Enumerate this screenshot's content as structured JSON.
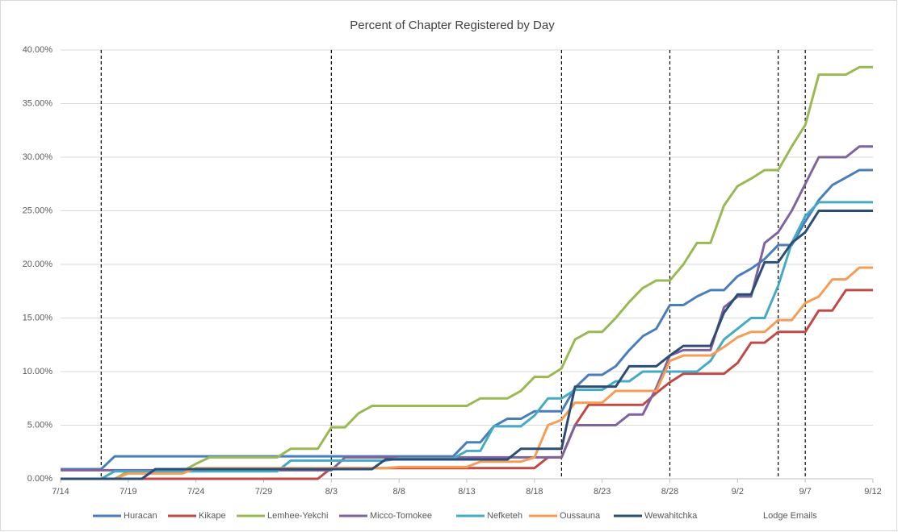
{
  "chart_data": {
    "type": "line",
    "title": "Percent of Chapter Registered by Day",
    "x": [
      0,
      1,
      2,
      3,
      4,
      5,
      6,
      7,
      8,
      9,
      10,
      11,
      12,
      13,
      14,
      15,
      16,
      17,
      18,
      19,
      20,
      21,
      22,
      23,
      24,
      25,
      26,
      27,
      28,
      29,
      30,
      31,
      32,
      33,
      34,
      35,
      36,
      37,
      38,
      39,
      40,
      41,
      42,
      43,
      44,
      45,
      46,
      47,
      48,
      49,
      50,
      51,
      52,
      53,
      54,
      55,
      56,
      57,
      58,
      59,
      60
    ],
    "xlim": [
      0,
      60
    ],
    "xticks": [
      {
        "value": 0,
        "label": "7/14"
      },
      {
        "value": 5,
        "label": "7/19"
      },
      {
        "value": 10,
        "label": "7/24"
      },
      {
        "value": 15,
        "label": "7/29"
      },
      {
        "value": 20,
        "label": "8/3"
      },
      {
        "value": 25,
        "label": "8/8"
      },
      {
        "value": 30,
        "label": "8/13"
      },
      {
        "value": 35,
        "label": "8/18"
      },
      {
        "value": 40,
        "label": "8/23"
      },
      {
        "value": 45,
        "label": "8/28"
      },
      {
        "value": 50,
        "label": "9/2"
      },
      {
        "value": 55,
        "label": "9/7"
      },
      {
        "value": 60,
        "label": "9/12"
      }
    ],
    "ylim": [
      0,
      40
    ],
    "yticks": [
      {
        "value": 0,
        "label": "0.00%"
      },
      {
        "value": 5,
        "label": "5.00%"
      },
      {
        "value": 10,
        "label": "10.00%"
      },
      {
        "value": 15,
        "label": "15.00%"
      },
      {
        "value": 20,
        "label": "20.00%"
      },
      {
        "value": 25,
        "label": "25.00%"
      },
      {
        "value": 30,
        "label": "30.00%"
      },
      {
        "value": 35,
        "label": "35.00%"
      },
      {
        "value": 40,
        "label": "40.00%"
      }
    ],
    "grid": true,
    "legend": "bottom",
    "series": [
      {
        "name": "Huracan",
        "color": "#4a7ebb",
        "values": [
          0.9,
          0.9,
          0.9,
          0.9,
          2.1,
          2.1,
          2.1,
          2.1,
          2.1,
          2.1,
          2.1,
          2.1,
          2.1,
          2.1,
          2.1,
          2.1,
          2.1,
          2.1,
          2.1,
          2.1,
          2.1,
          2.1,
          2.1,
          2.1,
          2.1,
          2.1,
          2.1,
          2.1,
          2.1,
          2.1,
          3.4,
          3.4,
          4.9,
          5.6,
          5.6,
          6.3,
          6.3,
          6.3,
          8.5,
          9.7,
          9.7,
          10.5,
          12,
          13.3,
          14,
          16.2,
          16.2,
          17,
          17.6,
          17.6,
          18.9,
          19.6,
          20.5,
          21.8,
          21.8,
          24,
          26,
          27.4,
          28.1,
          28.8,
          28.8
        ]
      },
      {
        "name": "Kikape",
        "color": "#be4b48",
        "values": [
          0,
          0,
          0,
          0,
          0,
          0,
          0,
          0,
          0,
          0,
          0,
          0,
          0,
          0,
          0,
          0,
          0,
          0,
          0,
          0,
          1,
          1,
          1,
          1,
          1,
          1,
          1,
          1,
          1,
          1,
          1,
          1,
          1,
          1,
          1,
          1,
          2,
          2,
          5,
          6.9,
          6.9,
          6.9,
          6.9,
          6.9,
          8,
          9,
          9.8,
          9.8,
          9.8,
          9.8,
          10.8,
          12.7,
          12.7,
          13.7,
          13.7,
          13.7,
          15.7,
          15.7,
          17.6,
          17.6,
          17.6
        ]
      },
      {
        "name": "Lemhee-Yekchi",
        "color": "#98b954",
        "values": [
          0,
          0,
          0,
          0,
          0,
          0.7,
          0.7,
          0.7,
          0.7,
          0.7,
          1.4,
          2,
          2,
          2,
          2,
          2,
          2,
          2.8,
          2.8,
          2.8,
          4.8,
          4.8,
          6.1,
          6.8,
          6.8,
          6.8,
          6.8,
          6.8,
          6.8,
          6.8,
          6.8,
          7.5,
          7.5,
          7.5,
          8.2,
          9.5,
          9.5,
          10.3,
          13,
          13.7,
          13.7,
          15,
          16.5,
          17.8,
          18.5,
          18.5,
          20,
          22,
          22,
          25.5,
          27.3,
          28,
          28.8,
          28.8,
          31,
          33,
          37.7,
          37.7,
          37.7,
          38.4,
          38.4
        ]
      },
      {
        "name": "Micco-Tomokee",
        "color": "#7e649e",
        "values": [
          0.8,
          0.8,
          0.8,
          0.8,
          0.8,
          0.8,
          0.8,
          0.8,
          0.8,
          0.8,
          0.8,
          0.8,
          0.8,
          0.8,
          0.8,
          0.8,
          0.8,
          0.8,
          0.8,
          0.8,
          0.8,
          2,
          2,
          2,
          2,
          2,
          2,
          2,
          2,
          2,
          2,
          2,
          2,
          2,
          2,
          2,
          2,
          2,
          5,
          5,
          5,
          5,
          6,
          6,
          8.5,
          11.5,
          12,
          12,
          12,
          16,
          17,
          17,
          22,
          23,
          25,
          27.5,
          30,
          30,
          30,
          31,
          31
        ]
      },
      {
        "name": "Nefketeh",
        "color": "#46aac5",
        "values": [
          0,
          0,
          0,
          0,
          0.7,
          0.7,
          0.7,
          0.7,
          0.7,
          0.7,
          0.7,
          0.7,
          0.7,
          0.7,
          0.7,
          0.7,
          0.7,
          1.7,
          1.7,
          1.7,
          1.7,
          1.7,
          1.7,
          1.7,
          1.7,
          1.9,
          1.9,
          1.9,
          1.9,
          1.9,
          2.6,
          2.6,
          4.9,
          4.9,
          4.9,
          5.9,
          7.5,
          7.5,
          8.3,
          8.3,
          8.3,
          9.1,
          9.1,
          10,
          10,
          10,
          10,
          10,
          11,
          13,
          14,
          15,
          15,
          18,
          22,
          24.5,
          25.8,
          25.8,
          25.8,
          25.8,
          25.8
        ]
      },
      {
        "name": "Oussauna",
        "color": "#f59d56",
        "values": [
          0,
          0,
          0,
          0,
          0,
          0.5,
          0.5,
          0.5,
          0.5,
          0.5,
          1,
          1,
          1,
          1,
          1,
          1,
          1,
          1,
          1,
          1,
          1,
          1,
          1,
          1,
          1,
          1.1,
          1.1,
          1.1,
          1.1,
          1.1,
          1.1,
          1.6,
          1.6,
          1.6,
          1.6,
          2,
          5,
          5.5,
          7.1,
          7.1,
          7.1,
          8.2,
          8.2,
          8.2,
          8.2,
          11,
          11.5,
          11.5,
          11.5,
          12.3,
          13.2,
          13.7,
          13.7,
          14.8,
          14.8,
          16.4,
          17,
          18.6,
          18.6,
          19.7,
          19.7
        ]
      },
      {
        "name": "Wewahitchka",
        "color": "#2c4d75",
        "values": [
          0,
          0,
          0,
          0,
          0,
          0,
          0,
          0.9,
          0.9,
          0.9,
          0.9,
          0.9,
          0.9,
          0.9,
          0.9,
          0.9,
          0.9,
          0.9,
          0.9,
          0.9,
          0.9,
          0.9,
          0.9,
          0.9,
          1.8,
          1.8,
          1.8,
          1.8,
          1.8,
          1.8,
          1.8,
          1.8,
          1.8,
          1.8,
          2.8,
          2.8,
          2.8,
          2.8,
          8.6,
          8.6,
          8.6,
          8.6,
          10.5,
          10.5,
          10.5,
          11.5,
          12.4,
          12.4,
          12.4,
          15.5,
          17.2,
          17.2,
          20.2,
          20.2,
          22,
          23,
          25,
          25,
          25,
          25,
          25
        ]
      }
    ],
    "lodge_emails": {
      "name": "Lodge Emails",
      "color": "#000000",
      "x": [
        3,
        20,
        37,
        45,
        53,
        55
      ]
    }
  }
}
